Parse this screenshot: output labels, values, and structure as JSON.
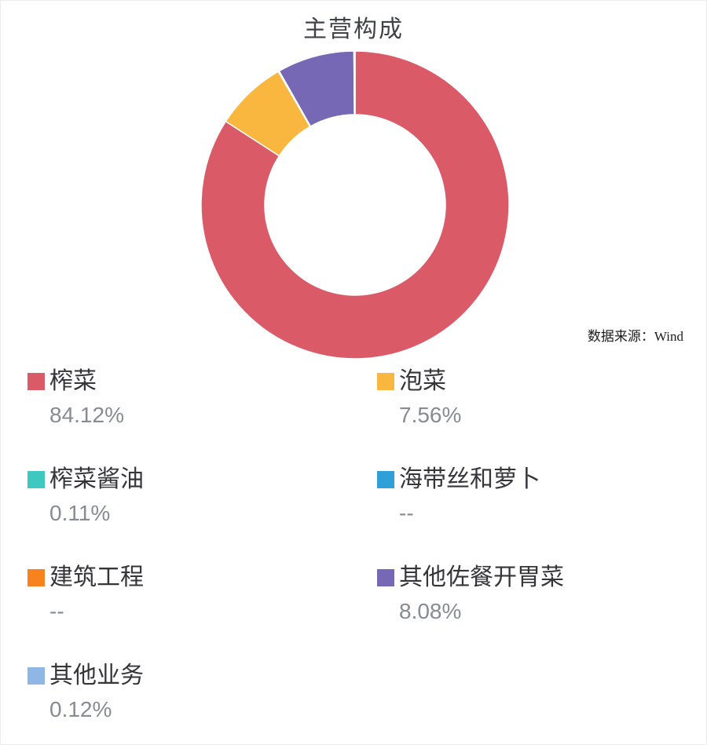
{
  "title": "主营构成",
  "source": "数据来源：Wind",
  "chart_data": {
    "type": "pie",
    "title": "主营构成",
    "subtype": "donut",
    "start_angle_deg": 0,
    "direction": "clockwise",
    "legend_position": "bottom",
    "series": [
      {
        "name": "榨菜",
        "value": 84.12,
        "display": "84.12%",
        "color": "#db5a68"
      },
      {
        "name": "泡菜",
        "value": 7.56,
        "display": "7.56%",
        "color": "#f9b73f"
      },
      {
        "name": "榨菜酱油",
        "value": 0.11,
        "display": "0.11%",
        "color": "#3ec8c0"
      },
      {
        "name": "海带丝和萝卜",
        "value": 0,
        "display": "--",
        "color": "#2f9fd7"
      },
      {
        "name": "建筑工程",
        "value": 0,
        "display": "--",
        "color": "#f8821e"
      },
      {
        "name": "其他佐餐开胃菜",
        "value": 8.08,
        "display": "8.08%",
        "color": "#7668b4"
      },
      {
        "name": "其他业务",
        "value": 0.12,
        "display": "0.12%",
        "color": "#8fb7e6"
      }
    ]
  }
}
